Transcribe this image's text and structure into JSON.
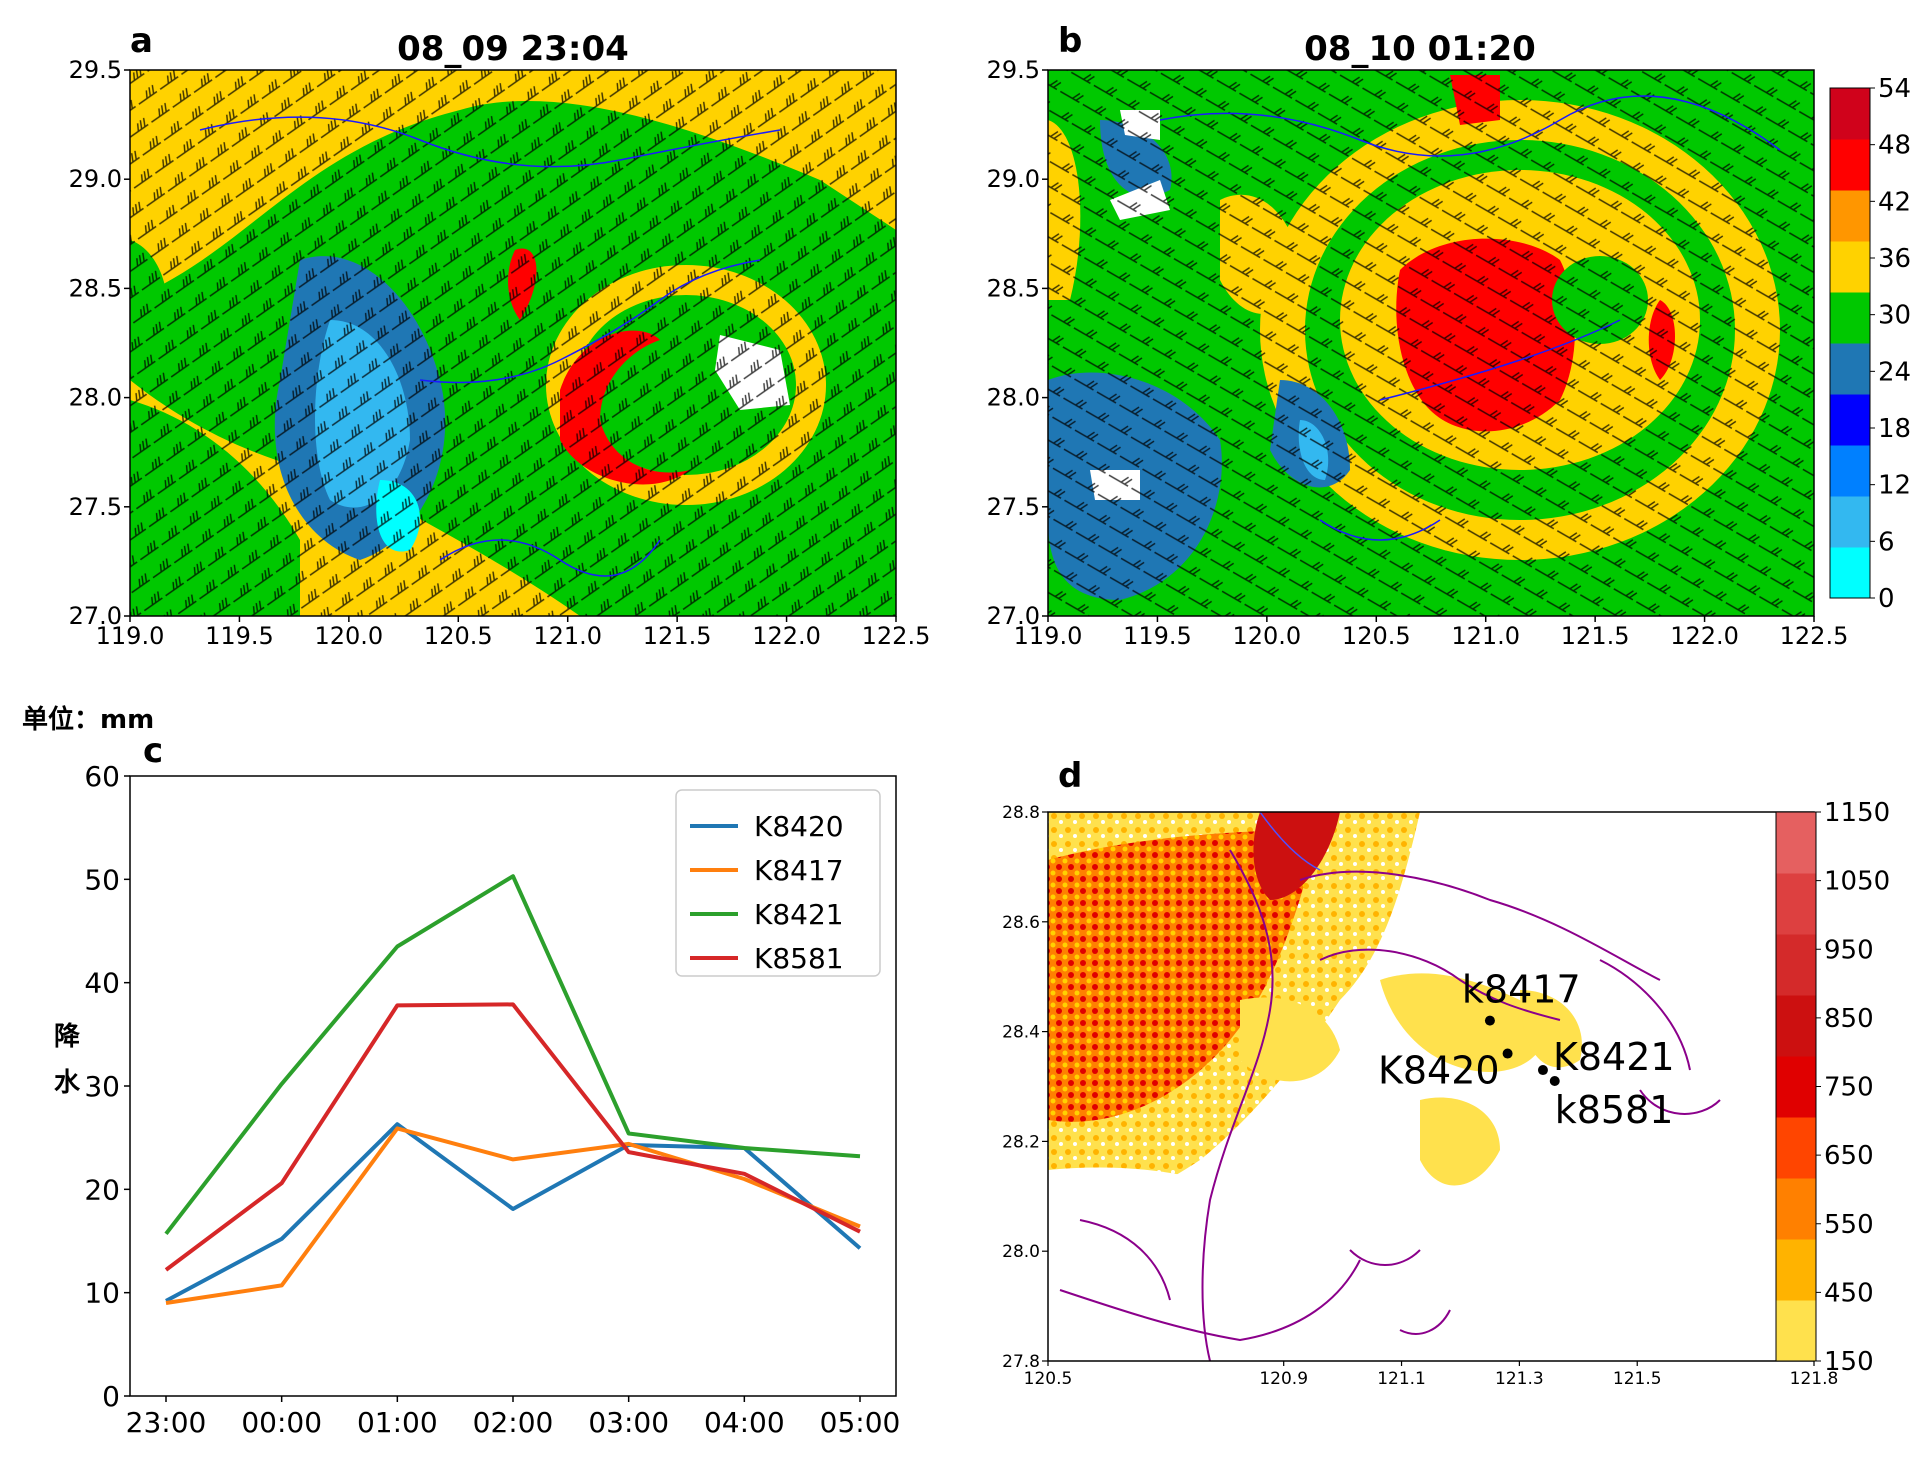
{
  "panel_a": {
    "label": "a",
    "title": "08_09 23:04",
    "x_ticks": [
      "119.0",
      "119.5",
      "120.0",
      "120.5",
      "121.0",
      "121.5",
      "122.0",
      "122.5"
    ],
    "y_ticks": [
      "27.0",
      "27.5",
      "28.0",
      "28.5",
      "29.0",
      "29.5"
    ]
  },
  "panel_b": {
    "label": "b",
    "title": "08_10 01:20",
    "x_ticks": [
      "119.0",
      "119.5",
      "120.0",
      "120.5",
      "121.0",
      "121.5",
      "122.0",
      "122.5"
    ],
    "y_ticks": [
      "27.0",
      "27.5",
      "28.0",
      "28.5",
      "29.0",
      "29.5"
    ],
    "colorbar": {
      "ticks": [
        "0",
        "6",
        "12",
        "18",
        "24",
        "30",
        "36",
        "42",
        "48",
        "54"
      ],
      "colors": [
        "#00ffff",
        "#33b8f0",
        "#0080ff",
        "#0000ff",
        "#1f77b4",
        "#00c800",
        "#ffd200",
        "#ff9600",
        "#ff0000",
        "#d0021b"
      ]
    }
  },
  "panel_c": {
    "label": "c",
    "unit_label": "单位：mm",
    "ylabel": "降水"
  },
  "panel_d": {
    "label": "d",
    "x_ticks": [
      "120.5",
      "120.9",
      "121.1",
      "121.3",
      "121.5",
      "121.8"
    ],
    "y_ticks": [
      "27.8",
      "28.0",
      "28.2",
      "28.4",
      "28.6",
      "28.8"
    ],
    "stations": [
      {
        "name": "k8417",
        "lon": 121.25,
        "lat": 28.42
      },
      {
        "name": "K8420",
        "lon": 121.28,
        "lat": 28.36
      },
      {
        "name": "K8421",
        "lon": 121.34,
        "lat": 28.33
      },
      {
        "name": "k8581",
        "lon": 121.36,
        "lat": 28.31
      }
    ],
    "colorbar": {
      "ticks": [
        "150",
        "450",
        "550",
        "650",
        "750",
        "850",
        "950",
        "1050",
        "1150"
      ],
      "colors": [
        "#ffe14d",
        "#ffb300",
        "#ff8000",
        "#ff4500",
        "#e00000",
        "#cc1010",
        "#d42a2a",
        "#dd4040",
        "#e56060"
      ]
    }
  },
  "chart_data": [
    {
      "type": "line",
      "panel": "c",
      "x": [
        "23:00",
        "00:00",
        "01:00",
        "02:00",
        "03:00",
        "04:00",
        "05:00"
      ],
      "ylim": [
        0,
        60
      ],
      "yticks": [
        0,
        10,
        20,
        30,
        40,
        50,
        60
      ],
      "legend_position": "top-right",
      "series": [
        {
          "name": "K8420",
          "color": "#1f77b4",
          "values": [
            9.2,
            15.2,
            26.3,
            18.1,
            24.3,
            24.0,
            14.3
          ]
        },
        {
          "name": "K8417",
          "color": "#ff7f0e",
          "values": [
            9.0,
            10.7,
            25.9,
            22.9,
            24.4,
            21.0,
            16.4
          ]
        },
        {
          "name": "K8421",
          "color": "#2ca02c",
          "values": [
            15.7,
            30.2,
            43.5,
            50.3,
            25.4,
            24.0,
            23.2
          ]
        },
        {
          "name": "K8581",
          "color": "#d62728",
          "values": [
            12.2,
            20.6,
            37.8,
            37.9,
            23.6,
            21.5,
            15.9
          ]
        }
      ]
    }
  ]
}
